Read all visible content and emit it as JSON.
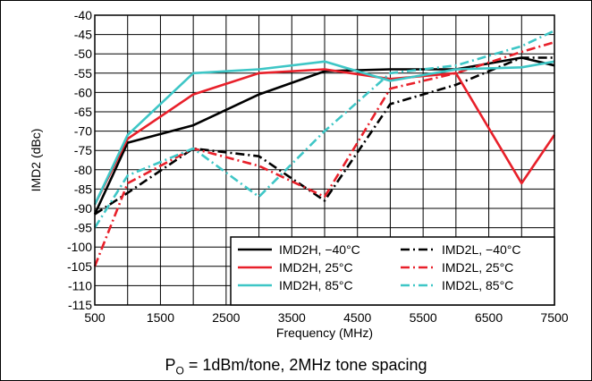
{
  "chart_data": {
    "type": "line",
    "xlabel": "Frequency (MHz)",
    "ylabel": "IMD2 (dBc)",
    "xlim": [
      500,
      7500
    ],
    "ylim": [
      -115,
      -40
    ],
    "xticks": [
      500,
      1500,
      2500,
      3500,
      4500,
      5500,
      6500,
      7500
    ],
    "yticks": [
      -40,
      -45,
      -50,
      -55,
      -60,
      -65,
      -70,
      -75,
      -80,
      -85,
      -90,
      -95,
      -100,
      -105,
      -110,
      -115
    ],
    "grid": true,
    "legend_position": "bottom-right",
    "caption": {
      "prefix": "P",
      "subscript": "O",
      "suffix": " = 1dBm/tone, 2MHz tone spacing"
    },
    "x": [
      500,
      1000,
      2000,
      3000,
      4000,
      5000,
      6000,
      7000,
      7500
    ],
    "series": [
      {
        "name": "IMD2H, −40°C",
        "color": "#000000",
        "dash": "solid",
        "values": [
          -91.5,
          -73,
          -68.5,
          -60.5,
          -54.5,
          -54,
          -54,
          -51,
          -53
        ]
      },
      {
        "name": "IMD2L, −40°C",
        "color": "#000000",
        "dash": "dashdot",
        "values": [
          -91.5,
          -86,
          -74.5,
          -76.5,
          -88,
          -63,
          -58,
          -51,
          -51
        ]
      },
      {
        "name": "IMD2H, 25°C",
        "color": "#e8202a",
        "dash": "solid",
        "values": [
          -89,
          -72,
          -60.5,
          -55,
          -54,
          -56.5,
          -55,
          -83.5,
          -71
        ]
      },
      {
        "name": "IMD2L, 25°C",
        "color": "#e8202a",
        "dash": "dashdot",
        "values": [
          -105,
          -83.5,
          -74.5,
          -79,
          -87,
          -59,
          -55,
          -49.5,
          -47
        ]
      },
      {
        "name": "IMD2H, 85°C",
        "color": "#3ec6c6",
        "dash": "solid",
        "values": [
          -89,
          -71,
          -55,
          -54,
          -52,
          -57,
          -54,
          -53.5,
          -52
        ]
      },
      {
        "name": "IMD2L, 85°C",
        "color": "#3ec6c6",
        "dash": "dashdot",
        "values": [
          -95,
          -81.5,
          -74.5,
          -87,
          -70,
          -55,
          -53,
          -48,
          -44
        ]
      }
    ]
  }
}
